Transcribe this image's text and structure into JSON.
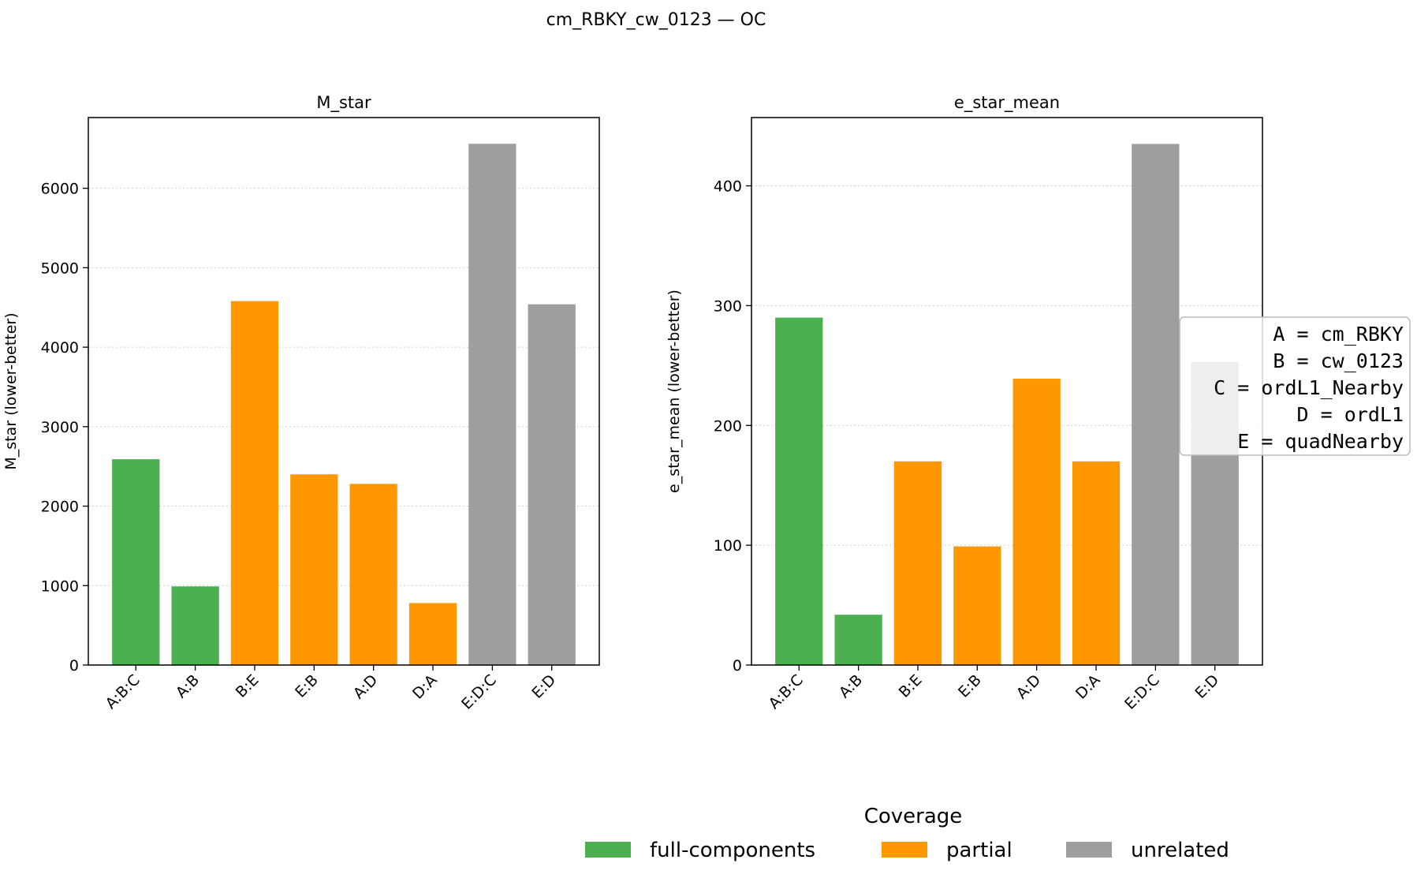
{
  "figure": {
    "suptitle": "cm_RBKY_cw_0123 — OC",
    "legend": {
      "title": "Coverage",
      "entries": [
        {
          "label": "full-components",
          "color": "#4caf50"
        },
        {
          "label": "partial",
          "color": "#ff9800"
        },
        {
          "label": "unrelated",
          "color": "#9e9e9e"
        }
      ]
    },
    "key_box": {
      "lines": [
        "A = cm_RBKY",
        "B = cw_0123",
        "C = ordL1_Nearby",
        "D = ordL1",
        "E = quadNearby"
      ]
    }
  },
  "chart_data": [
    {
      "type": "bar",
      "title": "M_star",
      "xlabel": "",
      "ylabel": "M_star (lower-better)",
      "categories": [
        "A:B:C",
        "A:B",
        "B:E",
        "E:B",
        "A:D",
        "D:A",
        "E:D:C",
        "E:D"
      ],
      "values": [
        2590,
        990,
        4580,
        2400,
        2280,
        780,
        6560,
        4540
      ],
      "coverage": [
        "full-components",
        "full-components",
        "partial",
        "partial",
        "partial",
        "partial",
        "unrelated",
        "unrelated"
      ],
      "ylim": [
        0,
        6890
      ],
      "yticks": [
        0,
        1000,
        2000,
        3000,
        4000,
        5000,
        6000
      ],
      "grid": "y-dotted"
    },
    {
      "type": "bar",
      "title": "e_star_mean",
      "xlabel": "",
      "ylabel": "e_star_mean (lower-better)",
      "categories": [
        "A:B:C",
        "A:B",
        "B:E",
        "E:B",
        "A:D",
        "D:A",
        "E:D:C",
        "E:D"
      ],
      "values": [
        290,
        42,
        170,
        99,
        239,
        170,
        435,
        253
      ],
      "coverage": [
        "full-components",
        "full-components",
        "partial",
        "partial",
        "partial",
        "partial",
        "unrelated",
        "unrelated"
      ],
      "ylim": [
        0,
        457
      ],
      "yticks": [
        0,
        100,
        200,
        300,
        400
      ],
      "grid": "y-dotted"
    }
  ]
}
